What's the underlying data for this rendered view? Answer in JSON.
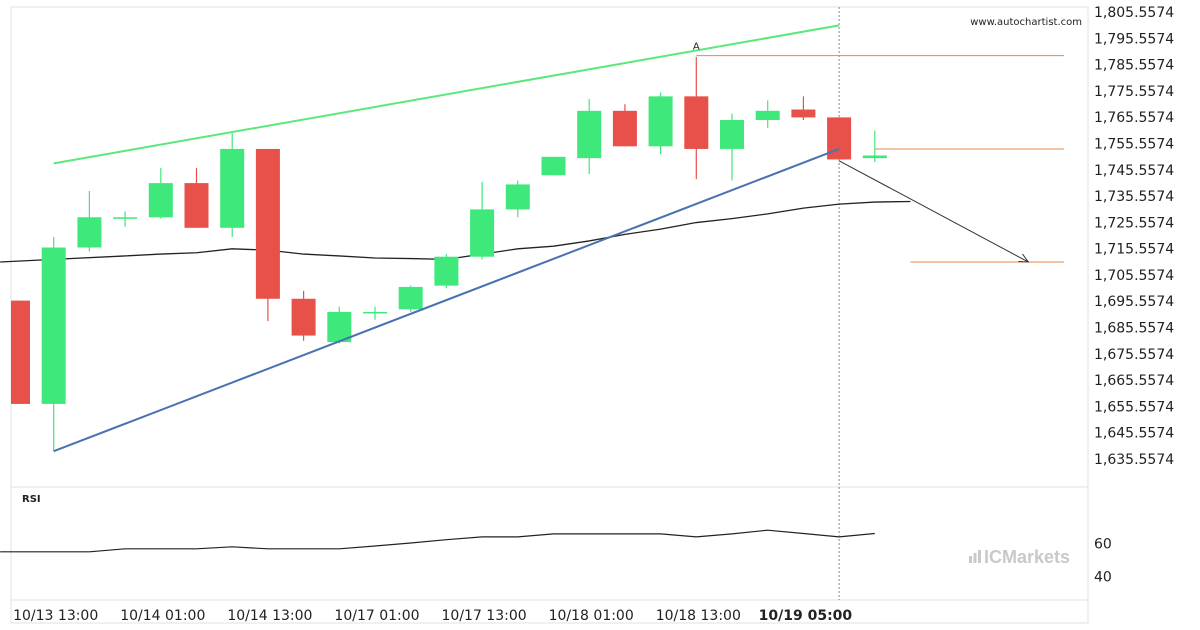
{
  "watermark_url": "www.autochartist.com",
  "brand": {
    "text": "ICMarkets",
    "color": "#c9c9c9"
  },
  "rsi_label": "RSI",
  "colors": {
    "bull": "#3ee87a",
    "bear": "#e8504a",
    "support": "#4a72b0",
    "resistance": "#5be87a",
    "hline": "#e8874a",
    "ma": "#222222",
    "arrow": "#333333"
  },
  "chart_data": {
    "type": "candlestick",
    "price_ticks": [
      "1,805.5574",
      "1,795.5574",
      "1,785.5574",
      "1,775.5574",
      "1,765.5574",
      "1,755.5574",
      "1,745.5574",
      "1,735.5574",
      "1,725.5574",
      "1,715.5574",
      "1,705.5574",
      "1,695.5574",
      "1,685.5574",
      "1,675.5574",
      "1,665.5574",
      "1,655.5574",
      "1,645.5574",
      "1,635.5574"
    ],
    "ylim": [
      1632.5,
      1807.5
    ],
    "x_ticks": [
      {
        "index": 1,
        "label": "10/13 13:00",
        "bold": false
      },
      {
        "index": 4,
        "label": "10/14 01:00",
        "bold": false
      },
      {
        "index": 7,
        "label": "10/14 13:00",
        "bold": false
      },
      {
        "index": 10,
        "label": "10/17 01:00",
        "bold": false
      },
      {
        "index": 13,
        "label": "10/17 13:00",
        "bold": false
      },
      {
        "index": 16,
        "label": "10/18 01:00",
        "bold": false
      },
      {
        "index": 19,
        "label": "10/18 13:00",
        "bold": false
      },
      {
        "index": 22,
        "label": "10/19 05:00",
        "bold": true
      }
    ],
    "candles": [
      {
        "o": 1695.8,
        "h": 1695.8,
        "l": 1656.5,
        "c": 1656.5
      },
      {
        "o": 1656.5,
        "h": 1720.0,
        "l": 1638.5,
        "c": 1716.0
      },
      {
        "o": 1716.0,
        "h": 1737.5,
        "l": 1714.5,
        "c": 1727.5
      },
      {
        "o": 1727.0,
        "h": 1729.8,
        "l": 1724.0,
        "c": 1727.5
      },
      {
        "o": 1727.5,
        "h": 1746.2,
        "l": 1727.0,
        "c": 1740.5
      },
      {
        "o": 1740.5,
        "h": 1746.2,
        "l": 1723.5,
        "c": 1723.5
      },
      {
        "o": 1723.5,
        "h": 1759.5,
        "l": 1720.0,
        "c": 1753.5
      },
      {
        "o": 1753.5,
        "h": 1753.5,
        "l": 1688.0,
        "c": 1696.5
      },
      {
        "o": 1696.5,
        "h": 1699.5,
        "l": 1680.5,
        "c": 1682.5
      },
      {
        "o": 1680.0,
        "h": 1693.5,
        "l": 1679.5,
        "c": 1691.5
      },
      {
        "o": 1691.0,
        "h": 1693.5,
        "l": 1688.5,
        "c": 1691.5
      },
      {
        "o": 1692.5,
        "h": 1701.5,
        "l": 1691.5,
        "c": 1701.0
      },
      {
        "o": 1701.5,
        "h": 1713.5,
        "l": 1700.5,
        "c": 1712.5
      },
      {
        "o": 1712.5,
        "h": 1741.0,
        "l": 1711.5,
        "c": 1730.5
      },
      {
        "o": 1730.5,
        "h": 1741.5,
        "l": 1727.5,
        "c": 1740.0
      },
      {
        "o": 1743.5,
        "h": 1750.5,
        "l": 1743.5,
        "c": 1750.5
      },
      {
        "o": 1750.0,
        "h": 1772.5,
        "l": 1744.0,
        "c": 1768.0
      },
      {
        "o": 1768.0,
        "h": 1770.5,
        "l": 1754.5,
        "c": 1754.5
      },
      {
        "o": 1754.5,
        "h": 1775.0,
        "l": 1751.5,
        "c": 1773.5
      },
      {
        "o": 1773.5,
        "h": 1788.5,
        "l": 1742.0,
        "c": 1753.5
      },
      {
        "o": 1753.5,
        "h": 1767.0,
        "l": 1741.5,
        "c": 1764.5
      },
      {
        "o": 1764.5,
        "h": 1772.0,
        "l": 1761.5,
        "c": 1768.0
      },
      {
        "o": 1768.5,
        "h": 1773.5,
        "l": 1764.5,
        "c": 1765.5
      },
      {
        "o": 1765.5,
        "h": 1765.5,
        "l": 1749.5,
        "c": 1749.5
      },
      {
        "o": 1750.0,
        "h": 1760.5,
        "l": 1748.5,
        "c": 1751.0
      }
    ],
    "moving_average": [
      {
        "index": -0.5,
        "value": 1710.5
      },
      {
        "index": 1,
        "value": 1711.5
      },
      {
        "index": 3,
        "value": 1712.8
      },
      {
        "index": 4,
        "value": 1713.5
      },
      {
        "index": 5,
        "value": 1714.0
      },
      {
        "index": 6,
        "value": 1715.5
      },
      {
        "index": 7,
        "value": 1715.0
      },
      {
        "index": 8,
        "value": 1713.5
      },
      {
        "index": 9,
        "value": 1712.8
      },
      {
        "index": 10,
        "value": 1712.0
      },
      {
        "index": 11,
        "value": 1711.8
      },
      {
        "index": 12,
        "value": 1711.5
      },
      {
        "index": 13,
        "value": 1713.5
      },
      {
        "index": 14,
        "value": 1715.5
      },
      {
        "index": 15,
        "value": 1716.5
      },
      {
        "index": 16,
        "value": 1718.5
      },
      {
        "index": 17,
        "value": 1721.0
      },
      {
        "index": 18,
        "value": 1723.0
      },
      {
        "index": 19,
        "value": 1725.5
      },
      {
        "index": 20,
        "value": 1727.0
      },
      {
        "index": 21,
        "value": 1728.8
      },
      {
        "index": 22,
        "value": 1731.0
      },
      {
        "index": 23,
        "value": 1732.5
      },
      {
        "index": 24,
        "value": 1733.3
      },
      {
        "index": 25,
        "value": 1733.5
      }
    ],
    "support_line": [
      {
        "index": 1,
        "value": 1638.5
      },
      {
        "index": 23,
        "value": 1753.5
      }
    ],
    "resistance_line": [
      {
        "index": 1,
        "value": 1748.0
      },
      {
        "index": 23,
        "value": 1800.5
      }
    ],
    "horizontal_levels": [
      {
        "value": 1789.0,
        "from_index": 19,
        "to_index": 29.3
      },
      {
        "value": 1753.5,
        "from_index": 24,
        "to_index": 29.3
      },
      {
        "value": 1710.5,
        "from_index": 25,
        "to_index": 29.3
      }
    ],
    "peak_marker": {
      "index": 19,
      "value": 1790.5,
      "label": "A"
    },
    "forecast_arrow": [
      {
        "index": 23,
        "value": 1749.0
      },
      {
        "index": 28.3,
        "value": 1710.5
      }
    ],
    "current_index": 23,
    "rsi": {
      "ticks": [
        60,
        40
      ],
      "ylim": [
        26,
        94
      ],
      "values": [
        {
          "index": -0.5,
          "value": 55
        },
        {
          "index": 1,
          "value": 55
        },
        {
          "index": 2,
          "value": 55
        },
        {
          "index": 3,
          "value": 56.8
        },
        {
          "index": 4,
          "value": 56.8
        },
        {
          "index": 5,
          "value": 56.8
        },
        {
          "index": 6,
          "value": 58
        },
        {
          "index": 7,
          "value": 56.8
        },
        {
          "index": 8,
          "value": 56.8
        },
        {
          "index": 9,
          "value": 56.8
        },
        {
          "index": 10,
          "value": 58.5
        },
        {
          "index": 11,
          "value": 60.3
        },
        {
          "index": 12,
          "value": 62.3
        },
        {
          "index": 13,
          "value": 64
        },
        {
          "index": 14,
          "value": 64
        },
        {
          "index": 15,
          "value": 65.8
        },
        {
          "index": 16,
          "value": 65.8
        },
        {
          "index": 17,
          "value": 65.8
        },
        {
          "index": 18,
          "value": 65.8
        },
        {
          "index": 19,
          "value": 64
        },
        {
          "index": 20,
          "value": 65.8
        },
        {
          "index": 21,
          "value": 68
        },
        {
          "index": 22,
          "value": 66
        },
        {
          "index": 23,
          "value": 64
        },
        {
          "index": 24,
          "value": 66
        }
      ]
    }
  }
}
